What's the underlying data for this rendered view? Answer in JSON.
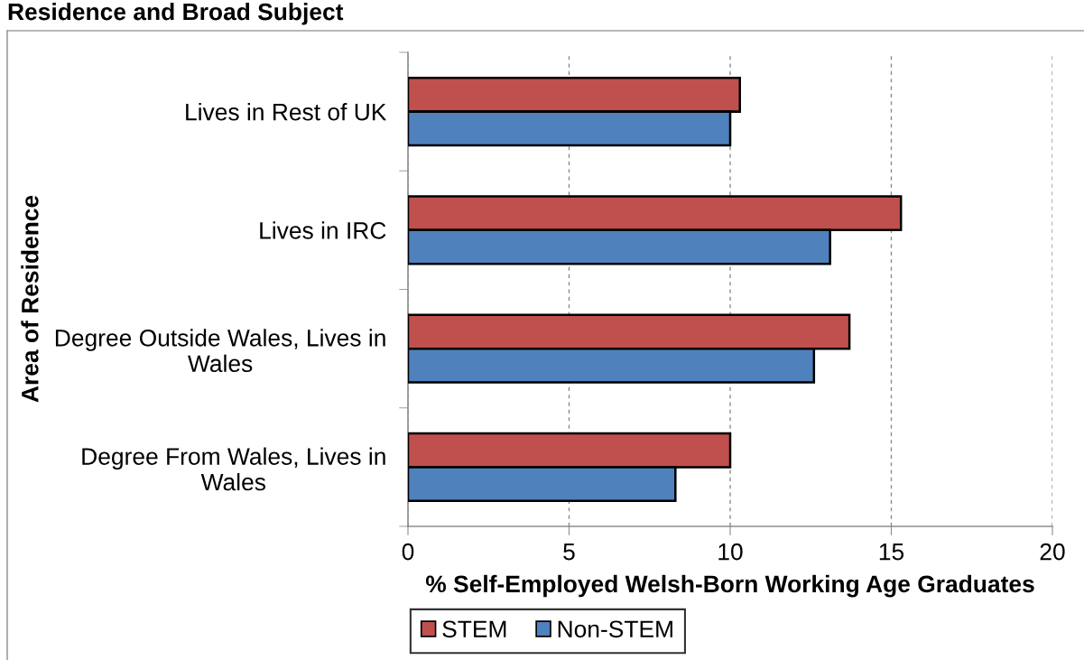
{
  "chart_data": {
    "type": "bar",
    "title": "Residence and Broad Subject",
    "xlabel": "% Self-Employed Welsh-Born Working Age Graduates",
    "ylabel": "Area of Residence",
    "orientation": "horizontal",
    "categories": [
      "Lives in Rest of UK",
      "Lives in IRC",
      "Degree Outside Wales, Lives in\nWales",
      "Degree From Wales, Lives in\nWales"
    ],
    "series": [
      {
        "name": "STEM",
        "color": "#c0504d",
        "values": [
          10.3,
          15.3,
          13.7,
          10.0
        ]
      },
      {
        "name": "Non-STEM",
        "color": "#4f81bd",
        "values": [
          10.0,
          13.1,
          12.6,
          8.3
        ]
      }
    ],
    "xlim": [
      0,
      20
    ],
    "xticks": [
      0,
      5,
      10,
      15,
      20
    ],
    "grid": "x",
    "legend": "bottom"
  }
}
